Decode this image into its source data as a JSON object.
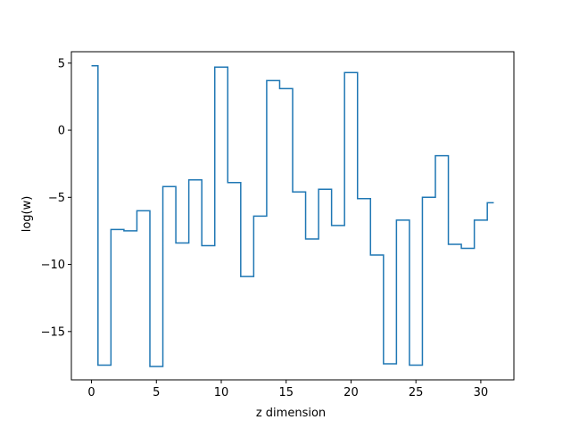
{
  "chart_data": {
    "type": "line",
    "drawstyle": "steps-mid",
    "title": "",
    "xlabel": "z dimension",
    "ylabel": "log(w)",
    "xlim": [
      -1.55,
      32.55
    ],
    "ylim": [
      -18.6,
      5.85
    ],
    "xticks": [
      0,
      5,
      10,
      15,
      20,
      25,
      30
    ],
    "xtick_labels": [
      "0",
      "5",
      "10",
      "15",
      "20",
      "25",
      "30"
    ],
    "yticks": [
      5,
      0,
      -5,
      -10,
      -15
    ],
    "ytick_labels": [
      "5",
      "0",
      "−5",
      "−10",
      "−15"
    ],
    "grid": false,
    "series": [
      {
        "color": "#1f77b4",
        "x": [
          0,
          1,
          2,
          3,
          4,
          5,
          6,
          7,
          8,
          9,
          10,
          11,
          12,
          13,
          14,
          15,
          16,
          17,
          18,
          19,
          20,
          21,
          22,
          23,
          24,
          25,
          26,
          27,
          28,
          29,
          30,
          31
        ],
        "y": [
          4.8,
          -17.5,
          -7.4,
          -7.5,
          -6.0,
          -17.6,
          -4.2,
          -8.4,
          -3.7,
          -8.6,
          4.7,
          -3.9,
          -10.9,
          -6.4,
          3.7,
          3.1,
          -4.6,
          -8.1,
          -4.4,
          -7.1,
          4.3,
          -5.1,
          -9.3,
          -17.4,
          -6.7,
          -17.5,
          -5.0,
          -1.9,
          -8.5,
          -8.8,
          -6.7,
          -5.4
        ]
      }
    ]
  }
}
